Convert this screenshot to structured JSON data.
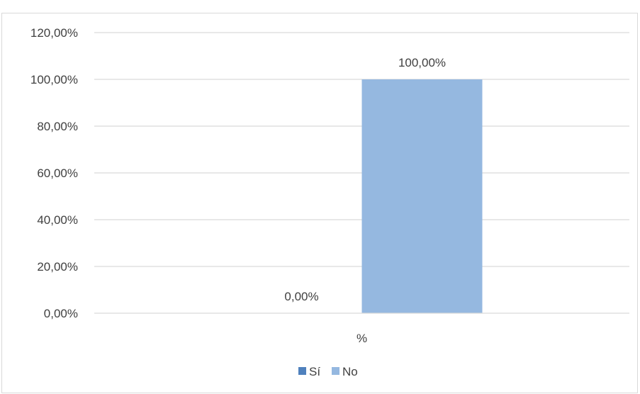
{
  "chart_data": {
    "type": "bar",
    "categories": [
      "%"
    ],
    "series": [
      {
        "name": "Sí",
        "values": [
          0
        ],
        "color": "#4f81bd",
        "data_labels": [
          "0,00%"
        ]
      },
      {
        "name": "No",
        "values": [
          100
        ],
        "color": "#95b8e0",
        "data_labels": [
          "100,00%"
        ]
      }
    ],
    "ylim": [
      0,
      120
    ],
    "yticks": [
      "0,00%",
      "20,00%",
      "40,00%",
      "60,00%",
      "80,00%",
      "100,00%",
      "120,00%"
    ],
    "ytick_values": [
      0,
      20,
      40,
      60,
      80,
      100,
      120
    ],
    "grid": true,
    "legend_position": "bottom",
    "title": "",
    "xlabel": "",
    "ylabel": ""
  }
}
